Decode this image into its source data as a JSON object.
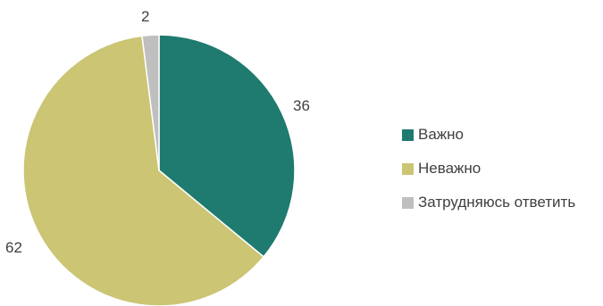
{
  "chart_data": {
    "type": "pie",
    "title": "",
    "categories": [
      "Важно",
      "Неважно",
      "Затрудняюсь ответить"
    ],
    "values": [
      36,
      62,
      2
    ],
    "colors": [
      "#1f7a6f",
      "#cbc574",
      "#bfbfbf"
    ],
    "data_labels": [
      "36",
      "62",
      "2"
    ],
    "legend": {
      "position": "right",
      "entries": [
        "Важно",
        "Неважно",
        "Затрудняюсь ответить"
      ]
    }
  }
}
